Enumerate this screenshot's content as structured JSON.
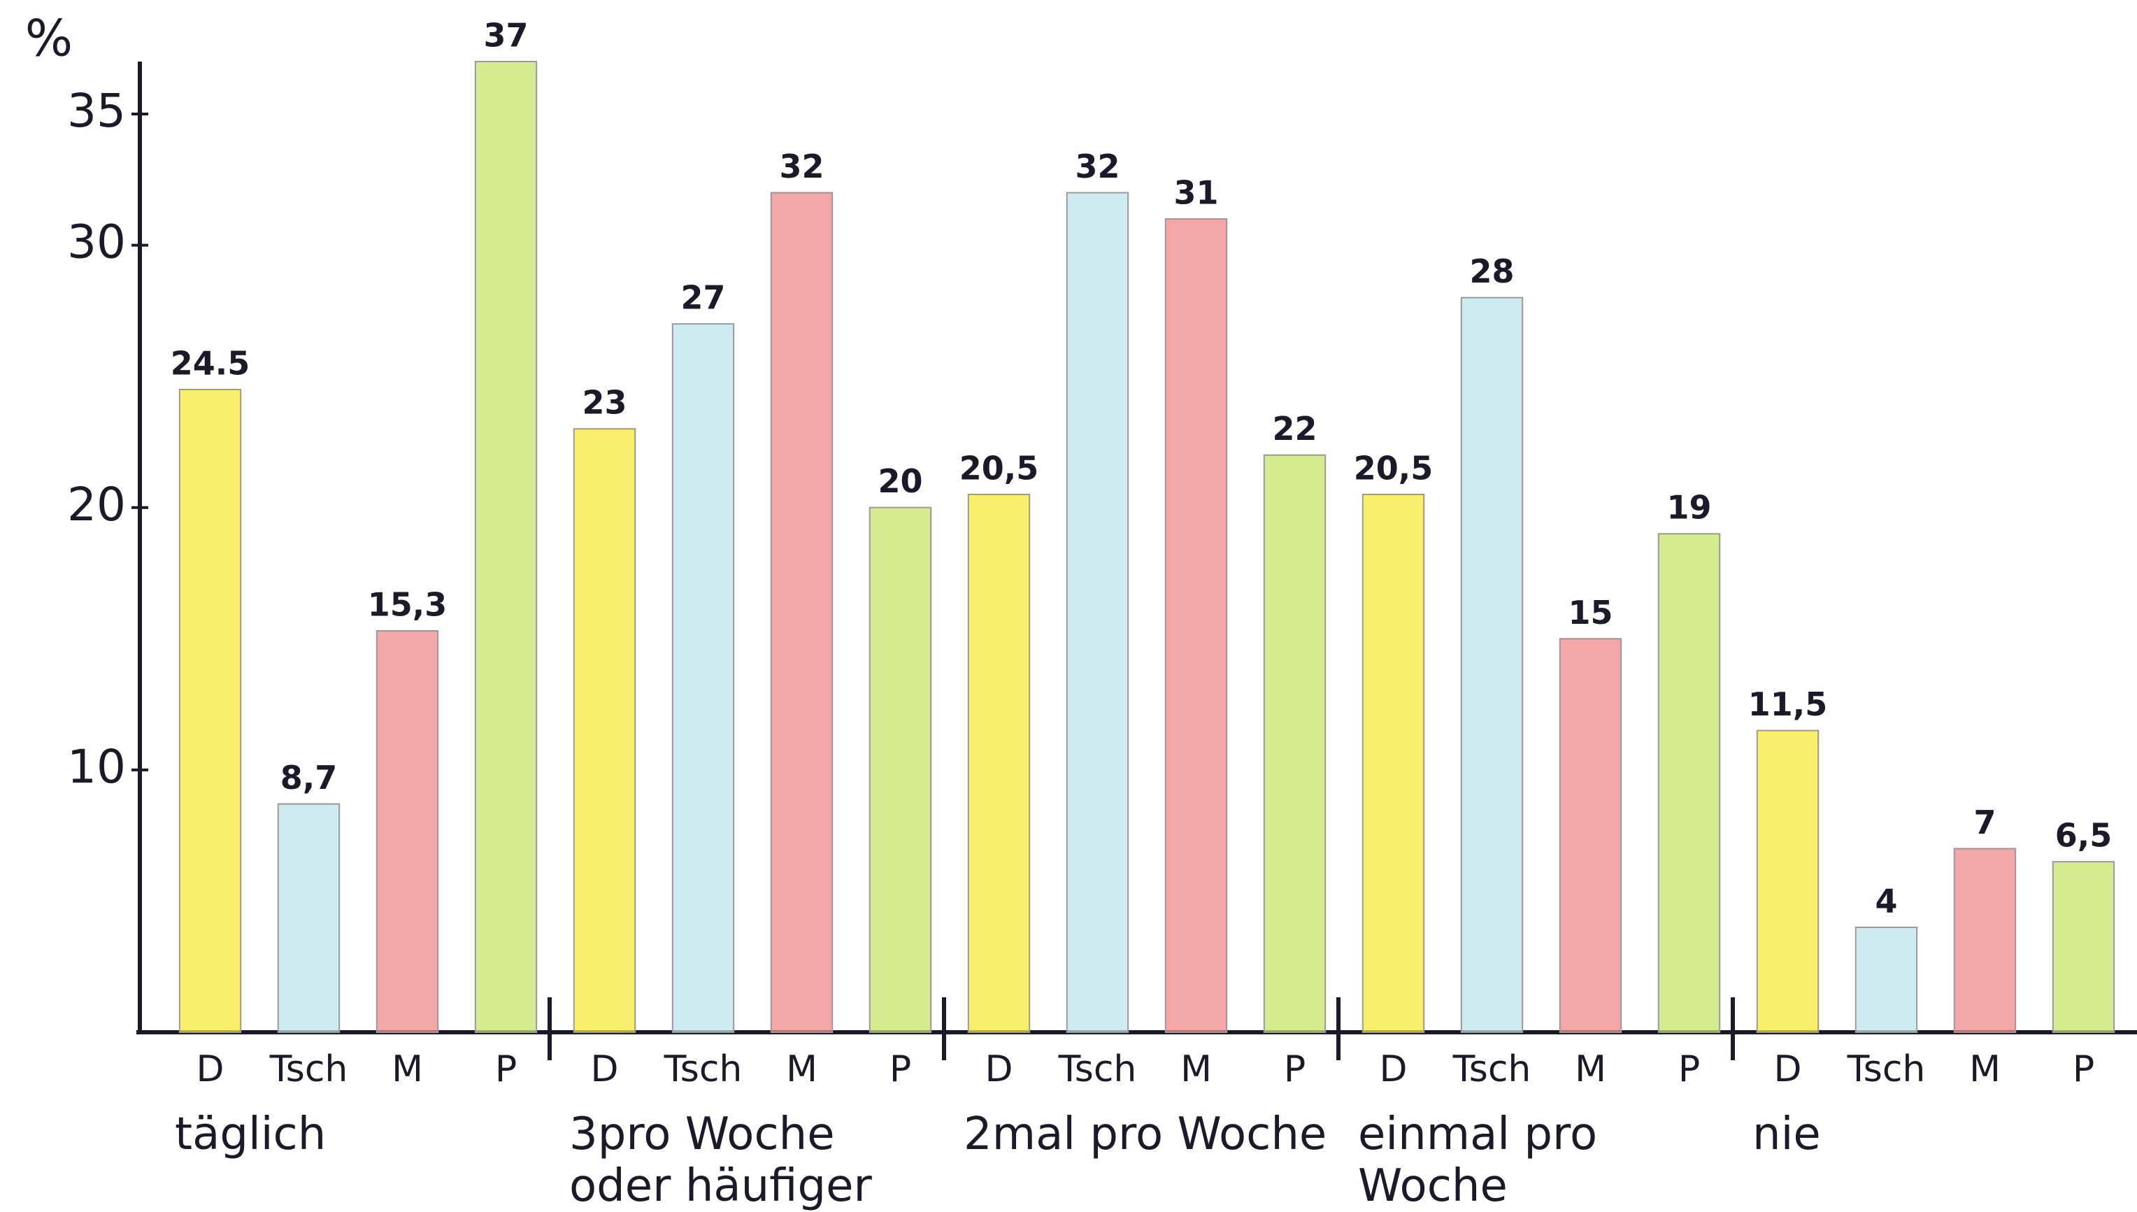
{
  "chart_data": {
    "type": "bar",
    "ylabel": "%",
    "ylim": [
      0,
      37
    ],
    "yticks": [
      10,
      20,
      30,
      35
    ],
    "colors": [
      "#f6ea3c",
      "#bfe4ee",
      "#ee8888",
      "#c6e668"
    ],
    "groups": [
      {
        "label": "täglich",
        "categories": [
          "D",
          "Tsch",
          "M",
          "P"
        ],
        "values": [
          24.5,
          8.7,
          15.3,
          37
        ],
        "value_labels": [
          "24.5",
          "8,7",
          "15,3",
          "37"
        ]
      },
      {
        "label": "3pro Woche oder häufiger",
        "categories": [
          "D",
          "Tsch",
          "M",
          "P"
        ],
        "values": [
          23,
          27,
          32,
          20
        ]
      },
      {
        "label": "2mal pro Woche",
        "categories": [
          "D",
          "Tsch",
          "M",
          "P"
        ],
        "values": [
          20.5,
          32,
          31,
          22
        ],
        "value_labels": [
          "20,5",
          "32",
          "31",
          "22"
        ]
      },
      {
        "label": "einmal pro Woche",
        "categories": [
          "D",
          "Tsch",
          "M",
          "P"
        ],
        "values": [
          20.5,
          28,
          15,
          19
        ],
        "value_labels": [
          "20,5",
          "28",
          "15",
          "19"
        ]
      },
      {
        "label": "nie",
        "categories": [
          "D",
          "Tsch",
          "M",
          "P"
        ],
        "values": [
          11.5,
          4,
          7,
          6.5
        ],
        "value_labels": [
          "11,5",
          "4",
          "7",
          "6,5"
        ]
      }
    ]
  }
}
